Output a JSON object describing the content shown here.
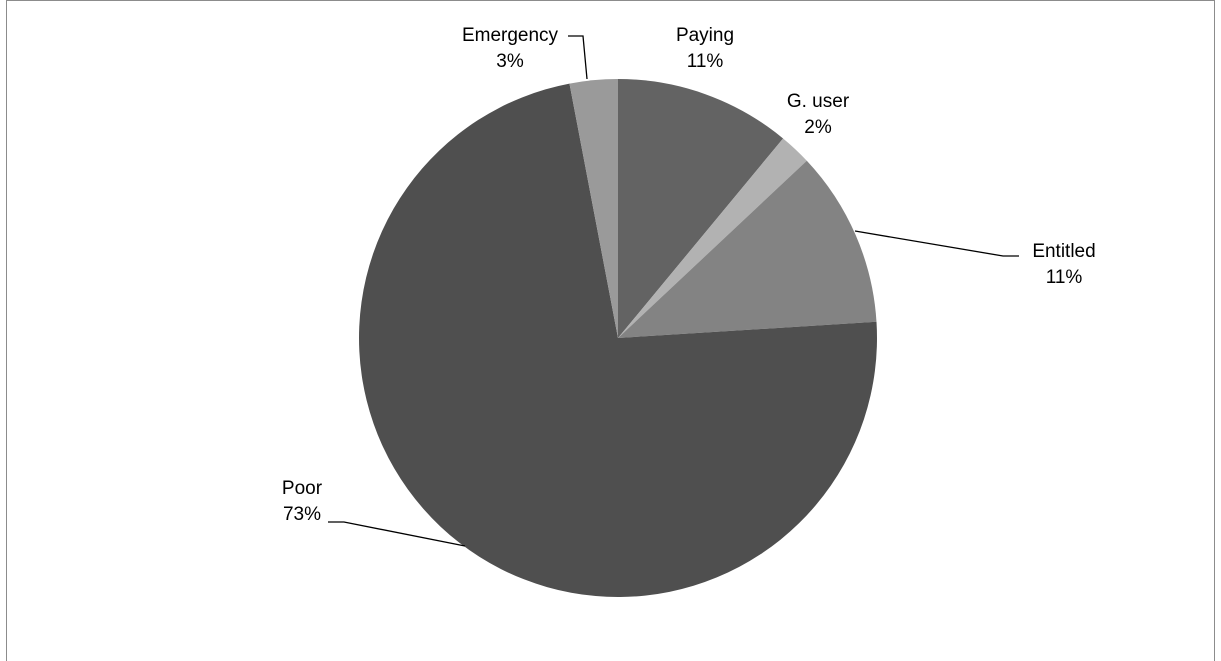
{
  "chart_data": {
    "type": "pie",
    "title": "",
    "start_angle_deg": 0,
    "direction": "clockwise",
    "slices": [
      {
        "name": "Paying",
        "value": 11,
        "pct_label": "11%",
        "color": "#636363"
      },
      {
        "name": "G. user",
        "value": 2,
        "pct_label": "2%",
        "color": "#b2b2b2"
      },
      {
        "name": "Entitled",
        "value": 11,
        "pct_label": "11%",
        "color": "#838383"
      },
      {
        "name": "Poor",
        "value": 73,
        "pct_label": "73%",
        "color": "#4f4f4f"
      },
      {
        "name": "Emergency",
        "value": 3,
        "pct_label": "3%",
        "color": "#9a9a9a"
      }
    ],
    "legend": "none",
    "data_labels": "category and percentage, outside end with leader lines"
  }
}
